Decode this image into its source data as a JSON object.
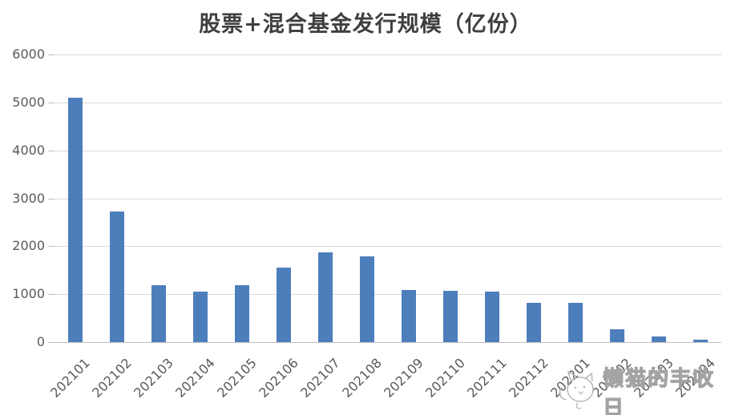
{
  "chart_data": {
    "type": "bar",
    "title": "股票+混合基金发行规模（亿份）",
    "categories": [
      "202101",
      "202102",
      "202103",
      "202104",
      "202105",
      "202106",
      "202107",
      "202108",
      "202109",
      "202110",
      "202111",
      "202112",
      "202201",
      "202202",
      "202203",
      "202204"
    ],
    "values": [
      5090,
      2730,
      1180,
      1050,
      1190,
      1550,
      1880,
      1790,
      1080,
      1065,
      1050,
      820,
      820,
      260,
      120,
      50
    ],
    "xlabel": "",
    "ylabel": "",
    "ylim": [
      0,
      6000
    ],
    "yticks": [
      0,
      1000,
      2000,
      3000,
      4000,
      5000,
      6000
    ],
    "grid": "horizontal",
    "legend": "none",
    "bar_color": "#4d7ebc",
    "gridline_color": "#d9d9d9",
    "axis_line_color": "#bfbfbf",
    "tick_label_color": "#595959",
    "title_color": "#3f3f3f"
  },
  "watermark": {
    "text": "懒猫的丰收日",
    "icon": "cat-doodle-icon",
    "outline_color": "#a3a3a3"
  }
}
